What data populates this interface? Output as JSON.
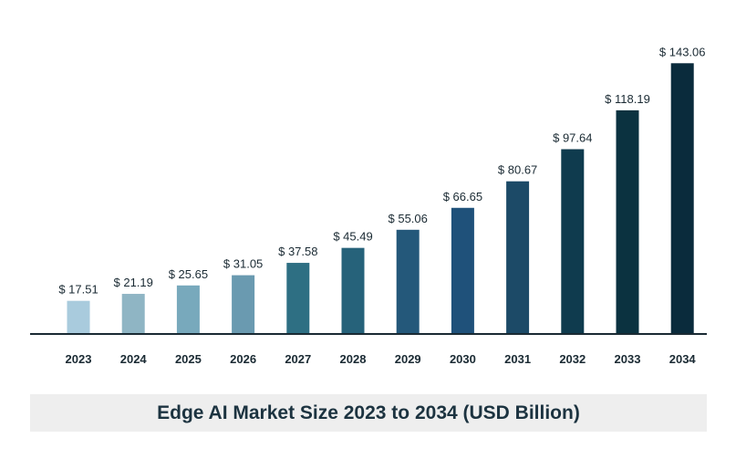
{
  "chart_data": {
    "type": "bar",
    "title": "Edge AI Market Size 2023 to 2034 (USD Billion)",
    "xlabel": "",
    "ylabel": "",
    "categories": [
      "2023",
      "2024",
      "2025",
      "2026",
      "2027",
      "2028",
      "2029",
      "2030",
      "2031",
      "2032",
      "2033",
      "2034"
    ],
    "values": [
      17.51,
      21.19,
      25.65,
      31.05,
      37.58,
      45.49,
      55.06,
      66.65,
      80.67,
      97.64,
      118.19,
      143.06
    ],
    "value_labels": [
      "$ 17.51",
      "$ 21.19",
      "$ 25.65",
      "$ 31.05",
      "$ 37.58",
      "$ 45.49",
      "$ 55.06",
      "$ 66.65",
      "$ 80.67",
      "$ 97.64",
      "$ 118.19",
      "$ 143.06"
    ],
    "ylim": [
      0,
      150
    ],
    "grid": false,
    "bar_colors": [
      "#a9cbdd",
      "#8fb5c4",
      "#78a9bc",
      "#6a9ab0",
      "#2e6f83",
      "#26627a",
      "#24587a",
      "#1f517a",
      "#1c4a67",
      "#0f3b4e",
      "#0b3240",
      "#0a2b3c"
    ],
    "axis_color": "#1a2a33",
    "label_color": "#1a2a33"
  }
}
